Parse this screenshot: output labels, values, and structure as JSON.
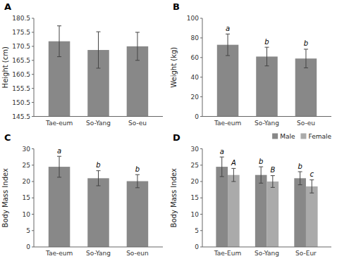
{
  "chart_data": [
    {
      "type": "bar",
      "title": "A",
      "ylabel": "Height (cm)",
      "categories": [
        "Tae-eum",
        "So-Yang",
        "So-eu"
      ],
      "values": [
        172.3,
        169.2,
        170.5
      ],
      "errors": [
        5.5,
        6.5,
        5.0
      ],
      "color": "#888888",
      "grid": false,
      "ylim": [
        145.5,
        180.5
      ],
      "yticks": [
        145.5,
        150.5,
        155.5,
        160.5,
        165.5,
        170.5,
        175.5,
        180.5
      ]
    },
    {
      "type": "bar",
      "title": "B",
      "ylabel": "Weight (kg)",
      "categories": [
        "Tae-eum",
        "So-Yang",
        "So-eu"
      ],
      "values": [
        73.0,
        61.0,
        59.0
      ],
      "errors": [
        11.0,
        9.5,
        9.5
      ],
      "annotations": [
        "a",
        "b",
        "b"
      ],
      "color": "#888888",
      "grid": false,
      "ylim": [
        0,
        100
      ],
      "yticks": [
        0,
        20,
        40,
        60,
        80,
        100
      ]
    },
    {
      "type": "bar",
      "title": "C",
      "ylabel": "Body Mass Index",
      "categories": [
        "Tae-eum",
        "So-Yang",
        "So-eun"
      ],
      "values": [
        24.5,
        21.0,
        20.1
      ],
      "errors": [
        3.2,
        2.3,
        2.0
      ],
      "annotations": [
        "a",
        "b",
        "b"
      ],
      "color": "#888888",
      "grid": false,
      "ylim": [
        0,
        30
      ],
      "yticks": [
        0,
        5,
        10,
        15,
        20,
        25,
        30
      ]
    },
    {
      "type": "bar",
      "title": "D",
      "ylabel": "Body Mass Index",
      "categories": [
        "Tae-Eum",
        "So-Yang",
        "So-Eur"
      ],
      "series": [
        {
          "name": "Male",
          "color": "#888888",
          "values": [
            24.5,
            22.0,
            21.0
          ],
          "errors": [
            3.0,
            2.5,
            2.0
          ],
          "annotations": [
            "a",
            "b",
            "b"
          ]
        },
        {
          "name": "Female",
          "color": "#aaaaaa",
          "values": [
            22.0,
            20.0,
            18.5
          ],
          "errors": [
            2.0,
            1.8,
            2.0
          ],
          "annotations": [
            "A",
            "B",
            "c"
          ]
        }
      ],
      "legend": "top-right",
      "grid": false,
      "ylim": [
        0,
        30
      ],
      "yticks": [
        0,
        5,
        10,
        15,
        20,
        25,
        30
      ]
    }
  ]
}
